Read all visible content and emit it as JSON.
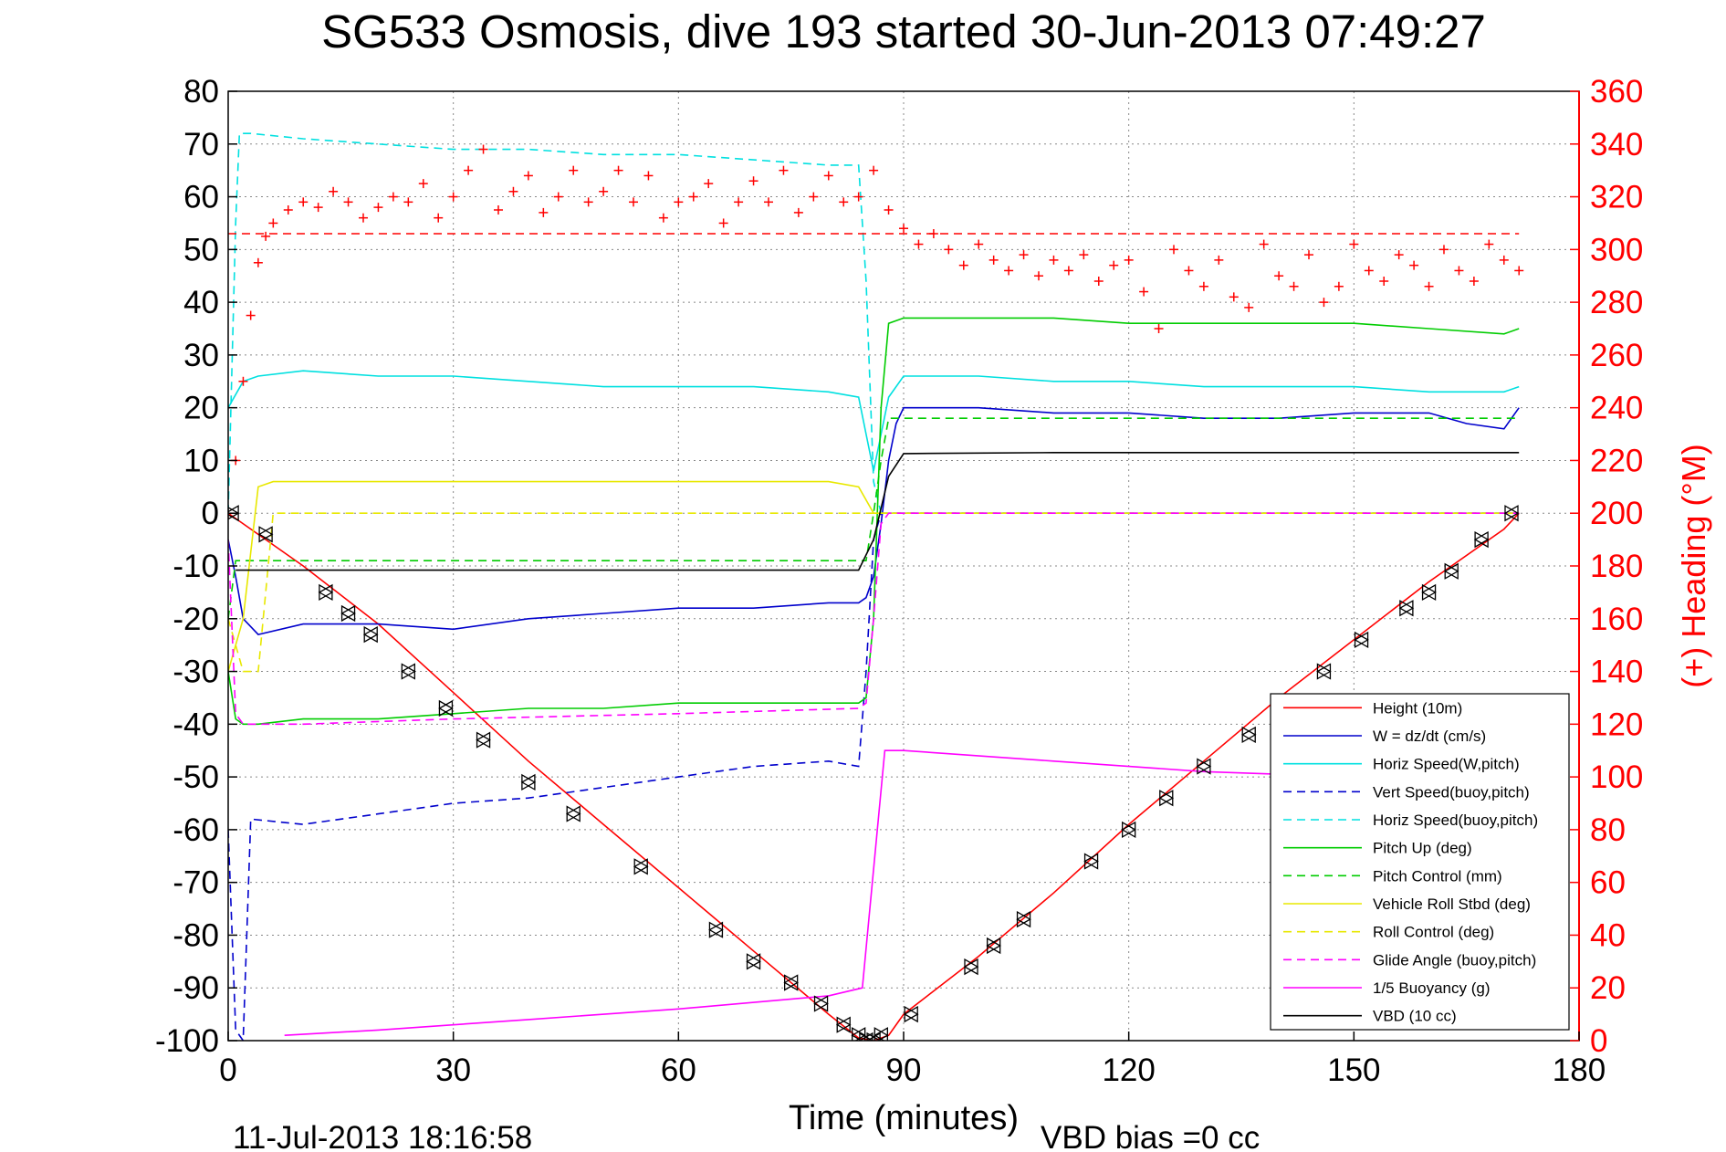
{
  "chart_data": {
    "type": "line",
    "title": "SG533 Osmosis, dive 193 started 30-Jun-2013 07:49:27",
    "xlabel": "Time (minutes)",
    "ylabel_right": "(+) Heading (°M)",
    "footer_left": "11-Jul-2013 18:16:58",
    "footer_right": "VBD bias =0 cc",
    "xlim": [
      0,
      180
    ],
    "ylim": [
      -100,
      80
    ],
    "ylim_right": [
      0,
      360
    ],
    "x_ticks": [
      0,
      30,
      60,
      90,
      120,
      150,
      180
    ],
    "y_ticks": [
      -100,
      -90,
      -80,
      -70,
      -60,
      -50,
      -40,
      -30,
      -20,
      -10,
      0,
      10,
      20,
      30,
      40,
      50,
      60,
      70,
      80
    ],
    "y_ticks_right": [
      0,
      20,
      40,
      60,
      80,
      100,
      120,
      140,
      160,
      180,
      200,
      220,
      240,
      260,
      280,
      300,
      320,
      340,
      360
    ],
    "grid": true,
    "legend_position": "lower-right",
    "colors": {
      "height": "#ff0000",
      "w": "#0000cc",
      "horiz_speed": "#00e0e0",
      "pitch": "#00cc00",
      "roll": "#e8e800",
      "glide": "#ff00ff",
      "vbd": "#000000",
      "heading": "#ff0000"
    },
    "series": [
      {
        "name": "Height (10m)",
        "style": "solid",
        "color": "#ff0000",
        "x": [
          0,
          1,
          10,
          20,
          30,
          40,
          50,
          60,
          70,
          80,
          84,
          86,
          88,
          90,
          100,
          110,
          120,
          130,
          140,
          150,
          160,
          170,
          172
        ],
        "y": [
          0,
          -1,
          -10,
          -21,
          -34,
          -47,
          -59,
          -71,
          -83,
          -95,
          -99.5,
          -100,
          -99,
          -95,
          -84,
          -72,
          -59,
          -47,
          -35,
          -24,
          -13,
          -3,
          0
        ]
      },
      {
        "name": "W = dz/dt (cm/s)",
        "style": "solid",
        "color": "#0000cc",
        "x": [
          0,
          1,
          2,
          4,
          10,
          20,
          30,
          40,
          50,
          60,
          70,
          80,
          84,
          85,
          86,
          87,
          88,
          89,
          90,
          100,
          110,
          120,
          130,
          140,
          150,
          160,
          165,
          170,
          172
        ],
        "y": [
          -5,
          -12,
          -20,
          -23,
          -21,
          -21,
          -22,
          -20,
          -19,
          -18,
          -18,
          -17,
          -17,
          -16,
          -12,
          -2,
          10,
          17,
          20,
          20,
          19,
          19,
          18,
          18,
          19,
          19,
          17,
          16,
          20
        ]
      },
      {
        "name": "Horiz Speed(W,pitch)",
        "style": "solid",
        "color": "#00e0e0",
        "x": [
          0,
          2,
          4,
          10,
          20,
          30,
          40,
          50,
          60,
          70,
          80,
          84,
          85,
          86,
          87,
          88,
          90,
          100,
          110,
          120,
          130,
          140,
          150,
          160,
          170,
          172
        ],
        "y": [
          20,
          25,
          26,
          27,
          26,
          26,
          25,
          24,
          24,
          24,
          23,
          22,
          15,
          8,
          15,
          22,
          26,
          26,
          25,
          25,
          24,
          24,
          24,
          23,
          23,
          24
        ]
      },
      {
        "name": "Vert Speed(buoy,pitch)",
        "style": "dashed",
        "color": "#0000cc",
        "x": [
          0,
          1,
          2,
          3,
          10,
          20,
          30,
          40,
          50,
          60,
          70,
          80,
          84,
          85,
          86,
          87,
          88,
          90,
          100,
          150,
          172
        ],
        "y": [
          -60,
          -98,
          -100,
          -58,
          -59,
          -57,
          -55,
          -54,
          -52,
          -50,
          -48,
          -47,
          -48,
          -30,
          -5,
          0,
          0,
          0,
          0,
          0,
          0
        ]
      },
      {
        "name": "Horiz Speed(buoy,pitch)",
        "style": "dashed",
        "color": "#00e0e0",
        "x": [
          0,
          1,
          1.5,
          3,
          10,
          20,
          30,
          40,
          50,
          60,
          70,
          80,
          84,
          85,
          86,
          87,
          90,
          100,
          150,
          172
        ],
        "y": [
          0,
          55,
          72,
          72,
          71,
          70,
          69,
          69,
          68,
          68,
          67,
          66,
          66,
          44,
          6,
          0,
          0,
          0,
          0,
          0
        ]
      },
      {
        "name": "Pitch Up (deg)",
        "style": "solid",
        "color": "#00cc00",
        "x": [
          0,
          1,
          2,
          4,
          10,
          20,
          30,
          40,
          50,
          60,
          70,
          80,
          84,
          85,
          86,
          87,
          88,
          90,
          100,
          110,
          120,
          130,
          140,
          150,
          160,
          170,
          172
        ],
        "y": [
          -30,
          -39,
          -40,
          -40,
          -39,
          -39,
          -38,
          -37,
          -37,
          -36,
          -36,
          -36,
          -36,
          -35,
          -20,
          20,
          36,
          37,
          37,
          37,
          36,
          36,
          36,
          36,
          35,
          34,
          35
        ]
      },
      {
        "name": "Pitch Control (mm)",
        "style": "dashed",
        "color": "#00cc00",
        "x": [
          0,
          1,
          2,
          10,
          30,
          60,
          84,
          85,
          86,
          87,
          88,
          90,
          120,
          150,
          172
        ],
        "y": [
          -20,
          -9,
          -9,
          -9,
          -9,
          -9,
          -9,
          -9,
          0,
          10,
          18,
          18,
          18,
          18,
          18
        ]
      },
      {
        "name": "Vehicle Roll Stbd (deg)",
        "style": "solid",
        "color": "#e8e800",
        "x": [
          0,
          2,
          4,
          6,
          10,
          20,
          30,
          40,
          50,
          60,
          70,
          80,
          84,
          86,
          88,
          90,
          100,
          120,
          150,
          172
        ],
        "y": [
          -30,
          -20,
          5,
          6,
          6,
          6,
          6,
          6,
          6,
          6,
          6,
          6,
          5,
          0,
          0,
          0,
          0,
          0,
          0,
          0
        ]
      },
      {
        "name": "Roll Control (deg)",
        "style": "dashed",
        "color": "#e8e800",
        "x": [
          0,
          2,
          4,
          6,
          20,
          40,
          60,
          80,
          84,
          86,
          90,
          120,
          150,
          172
        ],
        "y": [
          -20,
          -30,
          -30,
          0,
          0,
          0,
          0,
          0,
          0,
          0,
          0,
          0,
          0,
          0
        ]
      },
      {
        "name": "Glide Angle (buoy,pitch)",
        "style": "dashed",
        "color": "#ff00ff",
        "x": [
          0,
          1,
          2,
          4,
          10,
          30,
          60,
          84,
          85,
          86,
          87,
          88,
          90,
          120,
          150,
          172
        ],
        "y": [
          -5,
          -38,
          -40,
          -40,
          -40,
          -39,
          -38,
          -37,
          -36,
          -20,
          -2,
          0,
          0,
          0,
          0,
          0
        ]
      },
      {
        "name": "1/5 Buoyancy (g)",
        "style": "solid",
        "color": "#ff00ff",
        "x": [
          7.5,
          20,
          40,
          60,
          80,
          84.5,
          87.5,
          90,
          110,
          130,
          150
        ],
        "y": [
          -99,
          -98,
          -96,
          -94,
          -91.5,
          -90,
          -45,
          -45,
          -47,
          -49,
          -50
        ]
      },
      {
        "name": "VBD (10 cc)",
        "style": "solid",
        "color": "#000000",
        "x": [
          1,
          5,
          30,
          60,
          84,
          86,
          88,
          90,
          110,
          130,
          150,
          172
        ],
        "y": [
          -10.8,
          -10.8,
          -10.8,
          -10.8,
          -10.8,
          -5,
          7,
          11.3,
          11.5,
          11.5,
          11.5,
          11.5
        ]
      }
    ],
    "heading": {
      "name": "Heading (+)",
      "axis": "right",
      "reference_line": 306,
      "x": [
        0,
        1,
        2,
        3,
        4,
        5,
        6,
        8,
        10,
        12,
        14,
        16,
        18,
        20,
        22,
        24,
        26,
        28,
        30,
        32,
        34,
        36,
        38,
        40,
        42,
        44,
        46,
        48,
        50,
        52,
        54,
        56,
        58,
        60,
        62,
        64,
        66,
        68,
        70,
        72,
        74,
        76,
        78,
        80,
        82,
        84,
        86,
        88,
        90,
        92,
        94,
        96,
        98,
        100,
        102,
        104,
        106,
        108,
        110,
        112,
        114,
        116,
        118,
        120,
        122,
        124,
        126,
        128,
        130,
        132,
        134,
        136,
        138,
        140,
        142,
        144,
        146,
        148,
        150,
        152,
        154,
        156,
        158,
        160,
        162,
        164,
        166,
        168,
        170,
        172
      ],
      "y": [
        200,
        220,
        250,
        275,
        295,
        305,
        310,
        315,
        318,
        316,
        322,
        318,
        312,
        316,
        320,
        318,
        325,
        312,
        320,
        330,
        338,
        315,
        322,
        328,
        314,
        320,
        330,
        318,
        322,
        330,
        318,
        328,
        312,
        318,
        320,
        325,
        310,
        318,
        326,
        318,
        330,
        314,
        320,
        328,
        318,
        320,
        330,
        315,
        308,
        302,
        306,
        300,
        294,
        302,
        296,
        292,
        298,
        290,
        296,
        292,
        298,
        288,
        294,
        296,
        284,
        270,
        300,
        292,
        286,
        296,
        282,
        278,
        302,
        290,
        286,
        298,
        280,
        286,
        302,
        292,
        288,
        298,
        294,
        286,
        300,
        292,
        288,
        302,
        296,
        292
      ]
    },
    "markers": {
      "shape": "triangle",
      "color": "#000000",
      "x": [
        0.5,
        5,
        13,
        16,
        19,
        24,
        29,
        34,
        40,
        46,
        55,
        65,
        70,
        75,
        79,
        82,
        84,
        85,
        86,
        87,
        91,
        99,
        102,
        106,
        115,
        120,
        125,
        130,
        136,
        146,
        151,
        157,
        160,
        163,
        167,
        171
      ],
      "y": [
        0,
        -4,
        -15,
        -19,
        -23,
        -30,
        -37,
        -43,
        -51,
        -57,
        -67,
        -79,
        -85,
        -89,
        -93,
        -97,
        -99,
        -100,
        -100,
        -99,
        -95,
        -86,
        -82,
        -77,
        -66,
        -60,
        -54,
        -48,
        -42,
        -30,
        -24,
        -18,
        -15,
        -11,
        -5,
        0
      ]
    }
  }
}
